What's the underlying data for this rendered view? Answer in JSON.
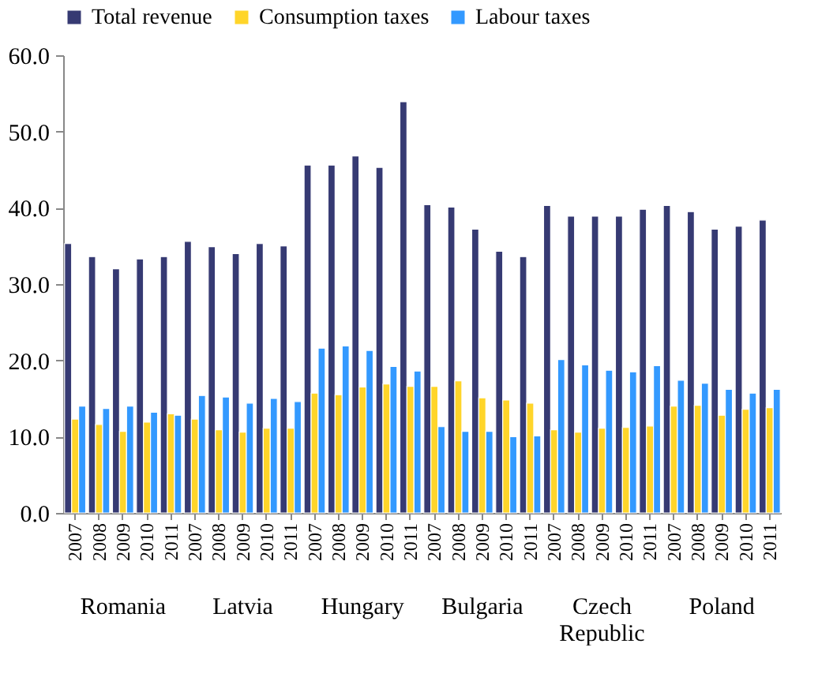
{
  "chart_data": {
    "type": "bar",
    "categories": [
      "2007",
      "2008",
      "2009",
      "2010",
      "2011",
      "2007",
      "2008",
      "2009",
      "2010",
      "2011",
      "2007",
      "2008",
      "2009",
      "2010",
      "2011",
      "2007",
      "2008",
      "2009",
      "2010",
      "2011",
      "2007",
      "2008",
      "2009",
      "2010",
      "2011",
      "2007",
      "2008",
      "2009",
      "2010",
      "2011"
    ],
    "series": [
      {
        "name": "Total revenue",
        "color": "#363a73",
        "values": [
          35.3,
          33.6,
          32.0,
          33.3,
          33.6,
          35.6,
          34.9,
          34.0,
          35.3,
          35.0,
          45.6,
          45.6,
          46.8,
          45.3,
          53.9,
          40.4,
          40.1,
          37.2,
          34.3,
          33.6,
          40.3,
          38.9,
          38.9,
          38.9,
          39.8,
          40.3,
          39.5,
          37.2,
          37.6,
          38.4
        ]
      },
      {
        "name": "Consumption taxes",
        "color": "#ffd52a",
        "values": [
          12.3,
          11.6,
          10.7,
          11.9,
          13.0,
          12.3,
          10.9,
          10.6,
          11.1,
          11.1,
          15.7,
          15.5,
          16.5,
          16.9,
          16.6,
          16.6,
          17.3,
          15.1,
          14.8,
          14.4,
          10.9,
          10.6,
          11.1,
          11.2,
          11.4,
          14.0,
          14.1,
          12.8,
          13.6,
          13.8
        ]
      },
      {
        "name": "Labour taxes",
        "color": "#3399ff",
        "values": [
          14.0,
          13.7,
          14.0,
          13.2,
          12.8,
          15.4,
          15.2,
          14.4,
          15.0,
          14.6,
          21.6,
          21.9,
          21.3,
          19.2,
          18.6,
          11.3,
          10.7,
          10.7,
          10.0,
          10.1,
          20.1,
          19.4,
          18.7,
          18.5,
          19.3,
          17.4,
          17.0,
          16.2,
          15.7,
          16.2
        ]
      }
    ],
    "annotations": [
      "Romania",
      "Latvia",
      "Hungary",
      "Bulgaria",
      "Czech Republic",
      "Poland"
    ],
    "ylim": [
      0,
      60
    ],
    "yticks": [
      {
        "value": 0,
        "label": "0.0"
      },
      {
        "value": 10,
        "label": "10.0"
      },
      {
        "value": 20,
        "label": "20.0"
      },
      {
        "value": 30,
        "label": "30.0"
      },
      {
        "value": 40,
        "label": "40.0"
      },
      {
        "value": 50,
        "label": "50.0"
      },
      {
        "value": 60,
        "label": "60.0"
      }
    ],
    "grid": false,
    "legend": "top"
  }
}
